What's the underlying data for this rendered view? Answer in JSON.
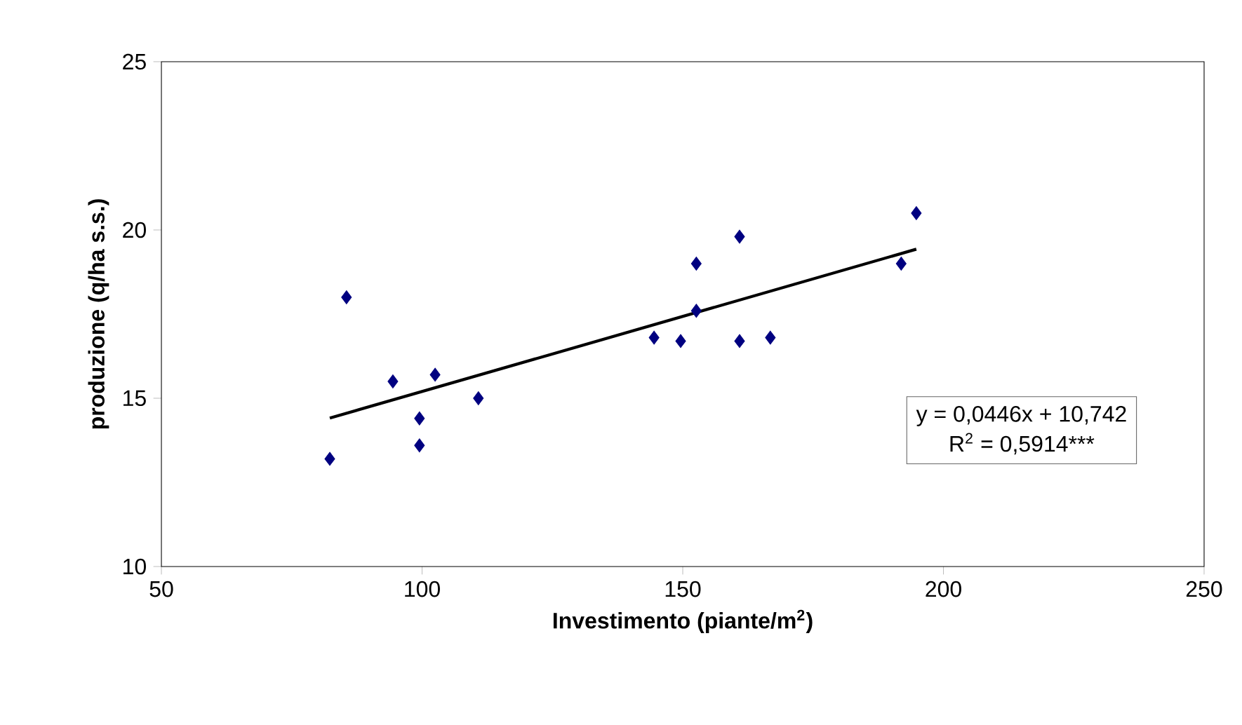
{
  "chart_data": {
    "type": "scatter",
    "xlabel": "Investimento (piante/m$^{2}$)",
    "ylabel": "produzione (q/ha s.s.)",
    "xlim": [
      50,
      250
    ],
    "ylim": [
      10,
      25
    ],
    "xticks": [
      50,
      100,
      150,
      200,
      250
    ],
    "yticks": [
      10,
      15,
      20,
      25
    ],
    "grid": false,
    "series": [
      {
        "marker": "diamond",
        "color": "#000080",
        "x": [
          82.3,
          85.5,
          94.4,
          99.5,
          99.5,
          102.5,
          110.8,
          144.5,
          149.6,
          152.6,
          152.6,
          160.9,
          160.9,
          166.8,
          191.9,
          194.8
        ],
        "values": [
          13.2,
          18.0,
          15.5,
          14.4,
          13.6,
          15.7,
          15.0,
          16.8,
          16.7,
          19.0,
          17.6,
          19.8,
          16.7,
          16.8,
          19.0,
          20.5
        ]
      },
      {
        "type": "line",
        "marker": "none",
        "line_style": "solid",
        "color": "#000000",
        "x": [
          82.3,
          194.8
        ],
        "values": [
          14.41,
          19.43
        ]
      }
    ],
    "annotations": [
      "y = 0,0446x + 10,742",
      "R$^{2}$ = 0,5914***"
    ]
  }
}
